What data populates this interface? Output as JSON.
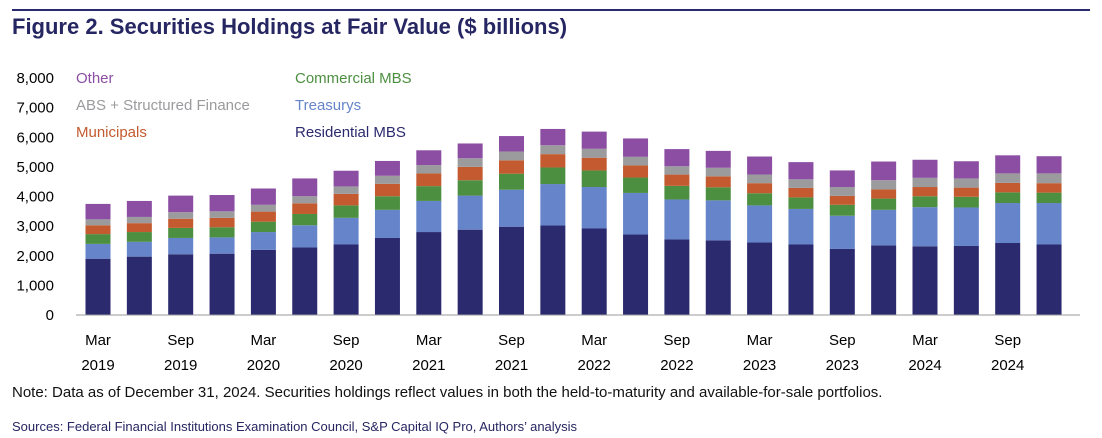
{
  "title": "Figure 2. Securities Holdings at Fair Value ($ billions)",
  "note": "Note: Data as of December 31, 2024. Securities holdings reflect values in both the held-to-maturity and available-for-sale portfolios.",
  "sources": "Sources: Federal Financial Institutions Examination Council, S&P Capital IQ Pro, Authors’ analysis",
  "chart_data": {
    "type": "bar",
    "stacked": true,
    "title": "Securities Holdings at Fair Value ($ billions)",
    "xlabel": "",
    "ylabel": "",
    "ylim": [
      0,
      8000
    ],
    "yticks": [
      0,
      1000,
      2000,
      3000,
      4000,
      5000,
      6000,
      7000,
      8000
    ],
    "ytick_labels": [
      "0",
      "1,000",
      "2,000",
      "3,000",
      "4,000",
      "5,000",
      "6,000",
      "7,000",
      "8,000"
    ],
    "categories": [
      "Mar 2019",
      "Jun 2019",
      "Sep 2019",
      "Dec 2019",
      "Mar 2020",
      "Jun 2020",
      "Sep 2020",
      "Dec 2020",
      "Mar 2021",
      "Jun 2021",
      "Sep 2021",
      "Dec 2021",
      "Mar 2022",
      "Jun 2022",
      "Sep 2022",
      "Dec 2022",
      "Mar 2023",
      "Jun 2023",
      "Sep 2023",
      "Dec 2023",
      "Mar 2024",
      "Jun 2024",
      "Sep 2024",
      "Dec 2024"
    ],
    "xtick_labels": [
      {
        "index": 0,
        "line1": "Mar",
        "line2": "2019"
      },
      {
        "index": 2,
        "line1": "Sep",
        "line2": "2019"
      },
      {
        "index": 4,
        "line1": "Mar",
        "line2": "2020"
      },
      {
        "index": 6,
        "line1": "Sep",
        "line2": "2020"
      },
      {
        "index": 8,
        "line1": "Mar",
        "line2": "2021"
      },
      {
        "index": 10,
        "line1": "Sep",
        "line2": "2021"
      },
      {
        "index": 12,
        "line1": "Mar",
        "line2": "2022"
      },
      {
        "index": 14,
        "line1": "Sep",
        "line2": "2022"
      },
      {
        "index": 16,
        "line1": "Mar",
        "line2": "2023"
      },
      {
        "index": 18,
        "line1": "Sep",
        "line2": "2023"
      },
      {
        "index": 20,
        "line1": "Mar",
        "line2": "2024"
      },
      {
        "index": 22,
        "line1": "Sep",
        "line2": "2024"
      }
    ],
    "series": [
      {
        "name": "Residential MBS",
        "color": "#2b2a6e",
        "values": [
          1900,
          1970,
          2050,
          2070,
          2200,
          2280,
          2380,
          2600,
          2800,
          2880,
          2980,
          3020,
          2920,
          2720,
          2550,
          2520,
          2450,
          2380,
          2230,
          2350,
          2320,
          2330,
          2430,
          2380
        ]
      },
      {
        "name": "Treasurys",
        "color": "#6584c9",
        "values": [
          500,
          500,
          550,
          550,
          600,
          750,
          900,
          950,
          1050,
          1150,
          1250,
          1400,
          1400,
          1400,
          1350,
          1350,
          1250,
          1200,
          1120,
          1200,
          1320,
          1300,
          1350,
          1400
        ]
      },
      {
        "name": "Commercial MBS",
        "color": "#4d8f41",
        "values": [
          330,
          330,
          340,
          340,
          350,
          380,
          420,
          460,
          500,
          520,
          540,
          560,
          560,
          520,
          460,
          440,
          410,
          390,
          370,
          380,
          370,
          360,
          360,
          350
        ]
      },
      {
        "name": "Municipals",
        "color": "#c45a2f",
        "values": [
          300,
          300,
          310,
          320,
          340,
          360,
          390,
          420,
          430,
          450,
          450,
          450,
          430,
          410,
          380,
          370,
          340,
          320,
          300,
          310,
          310,
          310,
          320,
          320
        ]
      },
      {
        "name": "ABS + Structured Finance",
        "color": "#9b9b9e",
        "values": [
          200,
          210,
          220,
          220,
          230,
          240,
          250,
          270,
          280,
          290,
          300,
          300,
          300,
          290,
          280,
          290,
          290,
          290,
          300,
          310,
          310,
          310,
          320,
          330
        ]
      },
      {
        "name": "Other",
        "color": "#8b4ea3",
        "values": [
          520,
          540,
          560,
          550,
          550,
          600,
          530,
          500,
          500,
          500,
          520,
          550,
          580,
          620,
          580,
          570,
          610,
          580,
          560,
          630,
          610,
          580,
          610,
          580
        ]
      }
    ],
    "legend": {
      "placement": "top-left",
      "columns": [
        [
          "Other",
          "ABS + Structured Finance",
          "Municipals"
        ],
        [
          "Commercial MBS",
          "Treasurys",
          "Residential MBS"
        ]
      ]
    }
  }
}
